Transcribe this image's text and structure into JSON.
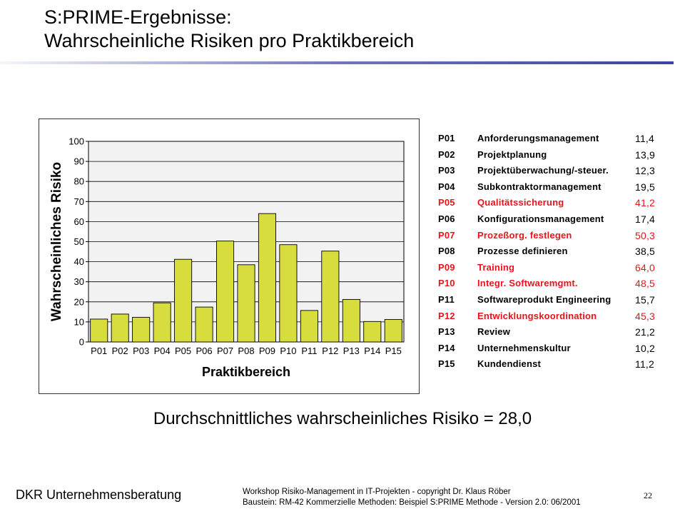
{
  "slide": {
    "title_line1": "S:PRIME-Ergebnisse:",
    "title_line2": "Wahrscheinliche Risiken pro Praktikbereich",
    "average_text": "Durchschnittliches wahrscheinliches Risiko = 28,0",
    "footer_brand": "DKR Unternehmensberatung",
    "footer_line1": "Workshop Risiko-Management  in IT-Projekten  - copyright Dr. Klaus Röber",
    "footer_line2": "Baustein: RM-42 Kommerzielle Methoden: Beispiel S:PRIME Methode - Version 2.0:  06/2001",
    "page_number": "22"
  },
  "colors": {
    "bar_fill": "#d6dd3c",
    "plot_background": "#f2f2f2",
    "highlight_text": "#e8141b",
    "title_rule_accent": "#3b44a0"
  },
  "legend": [
    {
      "code": "P01",
      "name": "Anforderungsmanagement",
      "value": "11,4",
      "highlight": false
    },
    {
      "code": "P02",
      "name": "Projektplanung",
      "value": "13,9",
      "highlight": false
    },
    {
      "code": "P03",
      "name": "Projektüberwachung/-steuer.",
      "value": "12,3",
      "highlight": false
    },
    {
      "code": "P04",
      "name": "Subkontraktormanagement",
      "value": "19,5",
      "highlight": false
    },
    {
      "code": "P05",
      "name": "Qualitätssicherung",
      "value": "41,2",
      "highlight": true
    },
    {
      "code": "P06",
      "name": "Konfigurationsmanagement",
      "value": "17,4",
      "highlight": false
    },
    {
      "code": "P07",
      "name": "Prozeßorg. festlegen",
      "value": "50,3",
      "highlight": true
    },
    {
      "code": "P08",
      "name": "Prozesse definieren",
      "value": "38,5",
      "highlight": false
    },
    {
      "code": "P09",
      "name": "Training",
      "value": "64,0",
      "highlight": true
    },
    {
      "code": "P10",
      "name": "Integr. Softwaremgmt.",
      "value": "48,5",
      "highlight": true
    },
    {
      "code": "P11",
      "name": "Softwareprodukt Engineering",
      "value": "15,7",
      "highlight": false
    },
    {
      "code": "P12",
      "name": "Entwicklungskoordination",
      "value": "45,3",
      "highlight": true
    },
    {
      "code": "P13",
      "name": "Review",
      "value": "21,2",
      "highlight": false
    },
    {
      "code": "P14",
      "name": "Unternehmenskultur",
      "value": "10,2",
      "highlight": false
    },
    {
      "code": "P15",
      "name": "Kundendienst",
      "value": "11,2",
      "highlight": false
    }
  ],
  "chart_data": {
    "type": "bar",
    "title": "",
    "xlabel": "Praktikbereich",
    "ylabel": "Wahrscheinliches Risiko",
    "categories": [
      "P01",
      "P02",
      "P03",
      "P04",
      "P05",
      "P06",
      "P07",
      "P08",
      "P09",
      "P10",
      "P11",
      "P12",
      "P13",
      "P14",
      "P15"
    ],
    "values": [
      11.4,
      13.9,
      12.3,
      19.5,
      41.2,
      17.4,
      50.3,
      38.5,
      64.0,
      48.5,
      15.7,
      45.3,
      21.2,
      10.2,
      11.2
    ],
    "ylim": [
      0,
      100
    ],
    "yticks": [
      0,
      10,
      20,
      30,
      40,
      50,
      60,
      70,
      80,
      90,
      100
    ],
    "grid": true,
    "legend": "none"
  }
}
